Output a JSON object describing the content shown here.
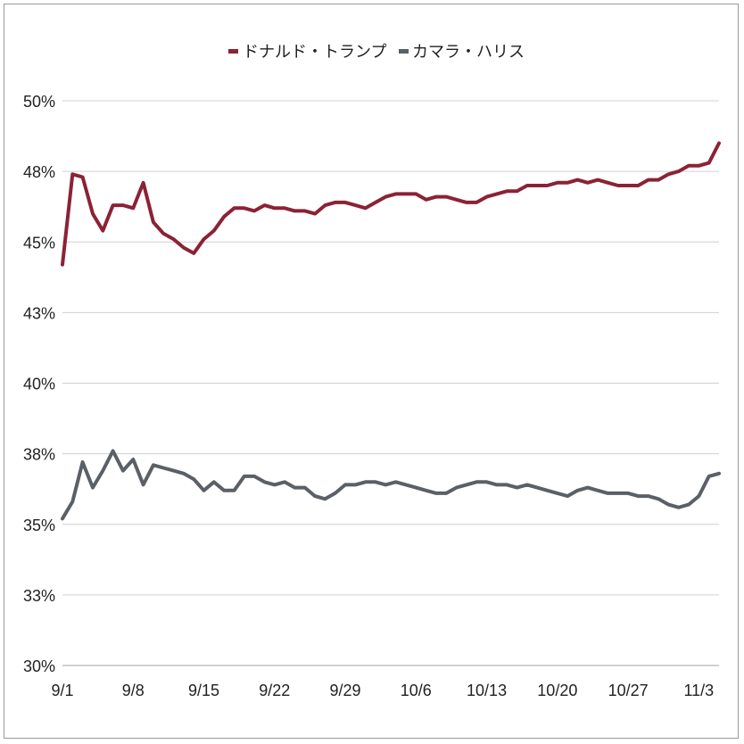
{
  "chart_data": {
    "type": "line",
    "title": "",
    "xlabel": "",
    "ylabel": "",
    "ylim": [
      30,
      50
    ],
    "yticks": [
      "30%",
      "33%",
      "35%",
      "38%",
      "40%",
      "43%",
      "45%",
      "48%",
      "50%"
    ],
    "ytick_values": [
      30,
      32.5,
      35,
      37.5,
      40,
      42.5,
      45,
      47.5,
      50
    ],
    "xticks": [
      "9/1",
      "9/8",
      "9/15",
      "9/22",
      "9/29",
      "10/6",
      "10/13",
      "10/20",
      "10/27",
      "11/3"
    ],
    "xtick_index": [
      0,
      7,
      14,
      21,
      28,
      35,
      42,
      49,
      56,
      63
    ],
    "grid": true,
    "legend_position": "top-center",
    "series": [
      {
        "name": "ドナルド・トランプ",
        "color": "#8b2235",
        "values": [
          44.2,
          47.4,
          47.3,
          46.0,
          45.4,
          46.3,
          46.3,
          46.2,
          47.1,
          45.7,
          45.3,
          45.1,
          44.8,
          44.6,
          45.1,
          45.4,
          45.9,
          46.2,
          46.2,
          46.1,
          46.3,
          46.2,
          46.2,
          46.1,
          46.1,
          46.0,
          46.3,
          46.4,
          46.4,
          46.3,
          46.2,
          46.4,
          46.6,
          46.7,
          46.7,
          46.7,
          46.5,
          46.6,
          46.6,
          46.5,
          46.4,
          46.4,
          46.6,
          46.7,
          46.8,
          46.8,
          47.0,
          47.0,
          47.0,
          47.1,
          47.1,
          47.2,
          47.1,
          47.2,
          47.1,
          47.0,
          47.0,
          47.0,
          47.2,
          47.2,
          47.4,
          47.5,
          47.7,
          47.7,
          47.8,
          48.5
        ]
      },
      {
        "name": "カマラ・ハリス",
        "color": "#5a6066",
        "values": [
          35.2,
          35.8,
          37.2,
          36.3,
          36.9,
          37.6,
          36.9,
          37.3,
          36.4,
          37.1,
          37.0,
          36.9,
          36.8,
          36.6,
          36.2,
          36.5,
          36.2,
          36.2,
          36.7,
          36.7,
          36.5,
          36.4,
          36.5,
          36.3,
          36.3,
          36.0,
          35.9,
          36.1,
          36.4,
          36.4,
          36.5,
          36.5,
          36.4,
          36.5,
          36.4,
          36.3,
          36.2,
          36.1,
          36.1,
          36.3,
          36.4,
          36.5,
          36.5,
          36.4,
          36.4,
          36.3,
          36.4,
          36.3,
          36.2,
          36.1,
          36.0,
          36.2,
          36.3,
          36.2,
          36.1,
          36.1,
          36.1,
          36.0,
          36.0,
          35.9,
          35.7,
          35.6,
          35.7,
          36.0,
          36.7,
          36.8
        ]
      }
    ]
  }
}
